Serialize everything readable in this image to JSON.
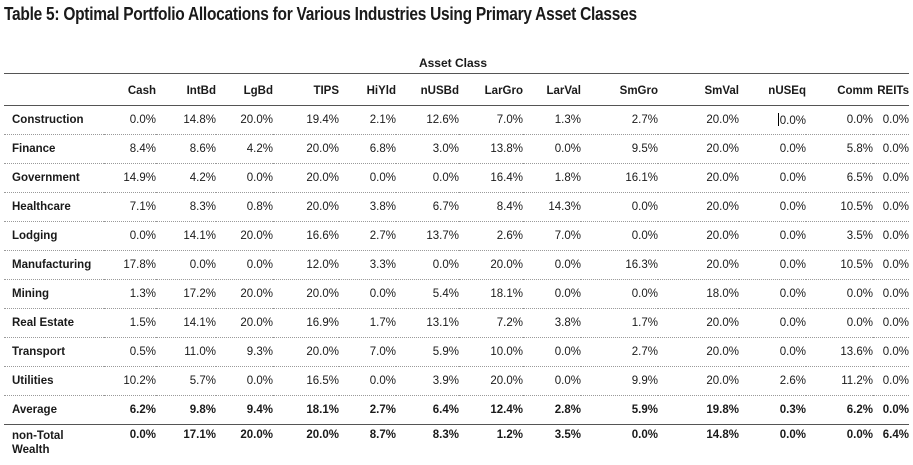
{
  "title": "Table 5: Optimal Portfolio Allocations for Various Industries Using Primary Asset Classes",
  "group_header": "Asset Class",
  "columns": [
    "Cash",
    "IntBd",
    "LgBd",
    "TIPS",
    "HiYld",
    "nUSBd",
    "LarGro",
    "LarVal",
    "SmGro",
    "SmVal",
    "nUSEq",
    "Comm",
    "REITs"
  ],
  "rows": [
    {
      "label": "Construction",
      "values": [
        "0.0%",
        "14.8%",
        "20.0%",
        "19.4%",
        "2.1%",
        "12.6%",
        "7.0%",
        "1.3%",
        "2.7%",
        "20.0%",
        "0.0%",
        "0.0%",
        "0.0%"
      ]
    },
    {
      "label": "Finance",
      "values": [
        "8.4%",
        "8.6%",
        "4.2%",
        "20.0%",
        "6.8%",
        "3.0%",
        "13.8%",
        "0.0%",
        "9.5%",
        "20.0%",
        "0.0%",
        "5.8%",
        "0.0%"
      ]
    },
    {
      "label": "Government",
      "values": [
        "14.9%",
        "4.2%",
        "0.0%",
        "20.0%",
        "0.0%",
        "0.0%",
        "16.4%",
        "1.8%",
        "16.1%",
        "20.0%",
        "0.0%",
        "6.5%",
        "0.0%"
      ]
    },
    {
      "label": "Healthcare",
      "values": [
        "7.1%",
        "8.3%",
        "0.8%",
        "20.0%",
        "3.8%",
        "6.7%",
        "8.4%",
        "14.3%",
        "0.0%",
        "20.0%",
        "0.0%",
        "10.5%",
        "0.0%"
      ]
    },
    {
      "label": "Lodging",
      "values": [
        "0.0%",
        "14.1%",
        "20.0%",
        "16.6%",
        "2.7%",
        "13.7%",
        "2.6%",
        "7.0%",
        "0.0%",
        "20.0%",
        "0.0%",
        "3.5%",
        "0.0%"
      ]
    },
    {
      "label": "Manufacturing",
      "values": [
        "17.8%",
        "0.0%",
        "0.0%",
        "12.0%",
        "3.3%",
        "0.0%",
        "20.0%",
        "0.0%",
        "16.3%",
        "20.0%",
        "0.0%",
        "10.5%",
        "0.0%"
      ]
    },
    {
      "label": "Mining",
      "values": [
        "1.3%",
        "17.2%",
        "20.0%",
        "20.0%",
        "0.0%",
        "5.4%",
        "18.1%",
        "0.0%",
        "0.0%",
        "18.0%",
        "0.0%",
        "0.0%",
        "0.0%"
      ]
    },
    {
      "label": "Real Estate",
      "values": [
        "1.5%",
        "14.1%",
        "20.0%",
        "16.9%",
        "1.7%",
        "13.1%",
        "7.2%",
        "3.8%",
        "1.7%",
        "20.0%",
        "0.0%",
        "0.0%",
        "0.0%"
      ]
    },
    {
      "label": "Transport",
      "values": [
        "0.5%",
        "11.0%",
        "9.3%",
        "20.0%",
        "7.0%",
        "5.9%",
        "10.0%",
        "0.0%",
        "2.7%",
        "20.0%",
        "0.0%",
        "13.6%",
        "0.0%"
      ]
    },
    {
      "label": "Utilities",
      "values": [
        "10.2%",
        "5.7%",
        "0.0%",
        "16.5%",
        "0.0%",
        "3.9%",
        "20.0%",
        "0.0%",
        "9.9%",
        "20.0%",
        "2.6%",
        "11.2%",
        "0.0%"
      ]
    }
  ],
  "average": {
    "label": "Average",
    "values": [
      "6.2%",
      "9.8%",
      "9.4%",
      "18.1%",
      "2.7%",
      "6.4%",
      "12.4%",
      "2.8%",
      "5.9%",
      "19.8%",
      "0.3%",
      "6.2%",
      "0.0%"
    ]
  },
  "non_total_wealth": {
    "label": "non-Total Wealth",
    "values": [
      "0.0%",
      "17.1%",
      "20.0%",
      "20.0%",
      "8.7%",
      "8.3%",
      "1.2%",
      "3.5%",
      "0.0%",
      "14.8%",
      "0.0%",
      "0.0%",
      "6.4%"
    ]
  }
}
